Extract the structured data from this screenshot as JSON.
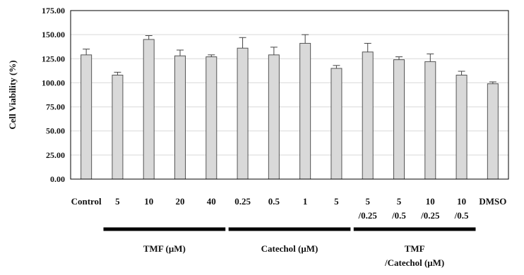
{
  "chart_data": {
    "type": "bar",
    "ylabel": "Cell Viability (%)",
    "xlabel": "",
    "ylim": [
      0,
      175
    ],
    "yticks": [
      "0.00",
      "25.00",
      "50.00",
      "75.00",
      "100.00",
      "125.00",
      "150.00",
      "175.00"
    ],
    "grid": "horizontal",
    "legend": "none",
    "categories": [
      [
        "Control"
      ],
      [
        "5"
      ],
      [
        "10"
      ],
      [
        "20"
      ],
      [
        "40"
      ],
      [
        "0.25"
      ],
      [
        "0.5"
      ],
      [
        "1"
      ],
      [
        "5"
      ],
      [
        "5",
        "/0.25"
      ],
      [
        "5",
        "/0.5"
      ],
      [
        "10",
        "/0.25"
      ],
      [
        "10",
        "/0.5"
      ],
      [
        "DMSO"
      ]
    ],
    "values": [
      129,
      108,
      145,
      128,
      127,
      136,
      129,
      141,
      115,
      132,
      124,
      122,
      108,
      99
    ],
    "errors": [
      6,
      3,
      4,
      6,
      2,
      11,
      8,
      9,
      3,
      9,
      3,
      8,
      4,
      2
    ],
    "groups": [
      {
        "label": [
          "TMF (μM)"
        ],
        "from": 1,
        "to": 4
      },
      {
        "label": [
          "Catechol (μM)"
        ],
        "from": 5,
        "to": 8
      },
      {
        "label": [
          "TMF",
          "/Catechol (μM)"
        ],
        "from": 9,
        "to": 12
      }
    ],
    "colors": {
      "bar_fill": "#d9d9d9",
      "bar_stroke": "#555555",
      "group_line": "#000000",
      "grid": "#d9d9d9"
    }
  }
}
